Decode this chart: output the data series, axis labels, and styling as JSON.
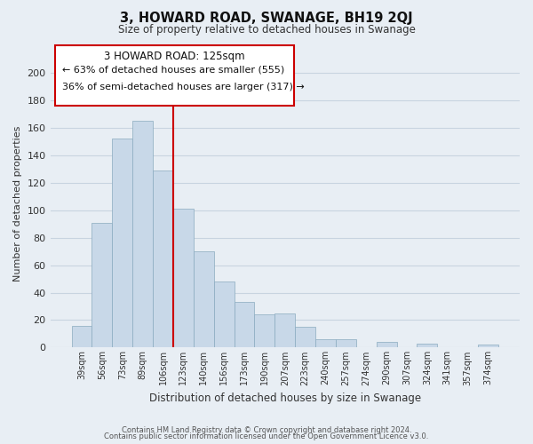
{
  "title": "3, HOWARD ROAD, SWANAGE, BH19 2QJ",
  "subtitle": "Size of property relative to detached houses in Swanage",
  "xlabel": "Distribution of detached houses by size in Swanage",
  "ylabel": "Number of detached properties",
  "bar_labels": [
    "39sqm",
    "56sqm",
    "73sqm",
    "89sqm",
    "106sqm",
    "123sqm",
    "140sqm",
    "156sqm",
    "173sqm",
    "190sqm",
    "207sqm",
    "223sqm",
    "240sqm",
    "257sqm",
    "274sqm",
    "290sqm",
    "307sqm",
    "324sqm",
    "341sqm",
    "357sqm",
    "374sqm"
  ],
  "bar_values": [
    16,
    91,
    152,
    165,
    129,
    101,
    70,
    48,
    33,
    24,
    25,
    15,
    6,
    6,
    0,
    4,
    0,
    3,
    0,
    0,
    2
  ],
  "bar_color": "#c8d8e8",
  "bar_edge_color": "#8aaabf",
  "vline_color": "#cc0000",
  "ylim": [
    0,
    210
  ],
  "yticks": [
    0,
    20,
    40,
    60,
    80,
    100,
    120,
    140,
    160,
    180,
    200
  ],
  "annotation_title": "3 HOWARD ROAD: 125sqm",
  "annotation_line1": "← 63% of detached houses are smaller (555)",
  "annotation_line2": "36% of semi-detached houses are larger (317) →",
  "annotation_box_color": "#ffffff",
  "annotation_box_edge": "#cc0000",
  "footer_line1": "Contains HM Land Registry data © Crown copyright and database right 2024.",
  "footer_line2": "Contains public sector information licensed under the Open Government Licence v3.0.",
  "background_color": "#e8eef4",
  "grid_color": "#c8d4e0"
}
